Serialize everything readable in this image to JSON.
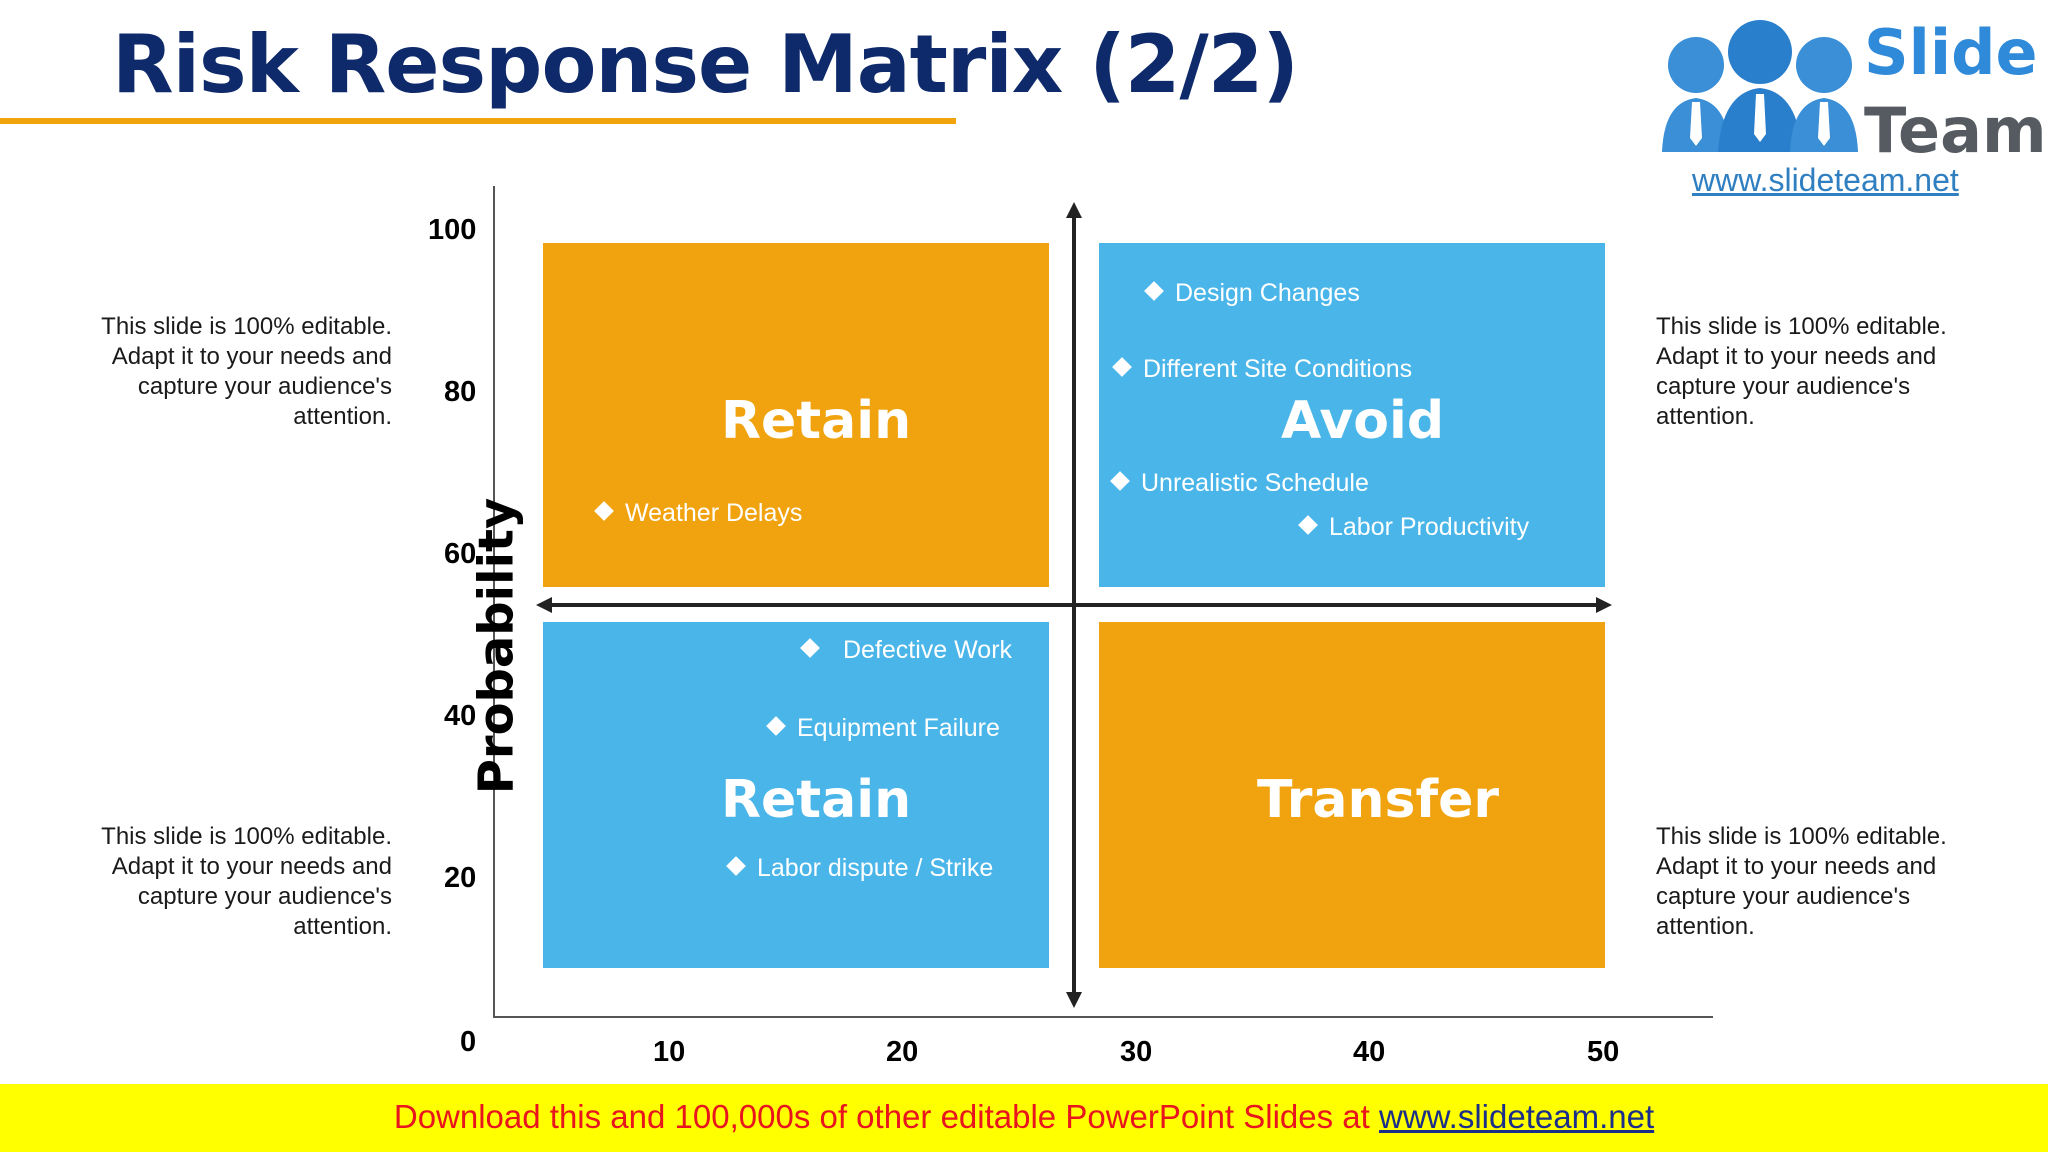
{
  "title": "Risk Response Matrix (2/2)",
  "logo": {
    "word1": "Slide",
    "word2": "Team",
    "url": "www.slideteam.net"
  },
  "side_texts": {
    "top_left": "This slide is 100% editable. Adapt it to your needs and capture your audience's attention.",
    "top_right": "This slide is 100% editable. Adapt it to your needs and capture your audience's attention.",
    "bottom_left": "This slide is 100% editable. Adapt it to your needs and capture your audience's attention.",
    "bottom_right": "This slide is 100% editable. Adapt it to your needs and capture your audience's attention."
  },
  "axes": {
    "y_label": "Probability",
    "y_ticks": [
      "100",
      "80",
      "60",
      "40",
      "20",
      "0"
    ],
    "x_ticks": [
      "10",
      "20",
      "30",
      "40",
      "50"
    ]
  },
  "quadrants": {
    "top_left": {
      "label": "Retain",
      "items": [
        "Weather Delays"
      ]
    },
    "top_right": {
      "label": "Avoid",
      "items": [
        "Design Changes",
        "Different Site Conditions",
        "Unrealistic Schedule",
        "Labor Productivity"
      ]
    },
    "bottom_left": {
      "label": "Retain",
      "items": [
        "Defective Work",
        "Equipment Failure",
        "Labor dispute / Strike"
      ]
    },
    "bottom_right": {
      "label": "Transfer",
      "items": []
    }
  },
  "colors": {
    "orange": "#f0a30f",
    "blue": "#4ab5e8",
    "title": "#0f2a6b",
    "accent_rule": "#f0a30a"
  },
  "footer": {
    "text": "Download this and 100,000s of other editable PowerPoint Slides at ",
    "link": "www.slideteam.net"
  }
}
